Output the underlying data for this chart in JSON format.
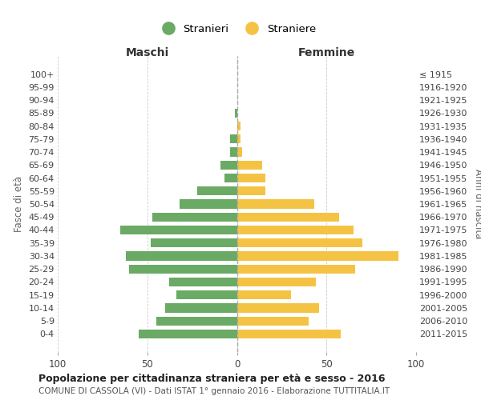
{
  "age_groups": [
    "100+",
    "95-99",
    "90-94",
    "85-89",
    "80-84",
    "75-79",
    "70-74",
    "65-69",
    "60-64",
    "55-59",
    "50-54",
    "45-49",
    "40-44",
    "35-39",
    "30-34",
    "25-29",
    "20-24",
    "15-19",
    "10-14",
    "5-9",
    "0-4"
  ],
  "birth_years": [
    "≤ 1915",
    "1916-1920",
    "1921-1925",
    "1926-1930",
    "1931-1935",
    "1936-1940",
    "1941-1945",
    "1946-1950",
    "1951-1955",
    "1956-1960",
    "1961-1965",
    "1966-1970",
    "1971-1975",
    "1976-1980",
    "1981-1985",
    "1986-1990",
    "1991-1995",
    "1996-2000",
    "2001-2005",
    "2006-2010",
    "2011-2015"
  ],
  "maschi": [
    0,
    0,
    0,
    1,
    0,
    4,
    4,
    9,
    7,
    22,
    32,
    47,
    65,
    48,
    62,
    60,
    38,
    34,
    40,
    45,
    55
  ],
  "femmine": [
    0,
    0,
    0,
    0,
    2,
    2,
    3,
    14,
    16,
    16,
    43,
    57,
    65,
    70,
    90,
    66,
    44,
    30,
    46,
    40,
    58
  ],
  "maschi_color": "#6aaa64",
  "femmine_color": "#f5c343",
  "background_color": "#ffffff",
  "grid_color": "#cccccc",
  "title": "Popolazione per cittadinanza straniera per età e sesso - 2016",
  "subtitle": "COMUNE DI CASSOLA (VI) - Dati ISTAT 1° gennaio 2016 - Elaborazione TUTTITALIA.IT",
  "xlabel_left": "Maschi",
  "xlabel_right": "Femmine",
  "ylabel_left": "Fasce di età",
  "ylabel_right": "Anni di nascita",
  "legend_maschi": "Stranieri",
  "legend_femmine": "Straniere",
  "xlim": 100
}
